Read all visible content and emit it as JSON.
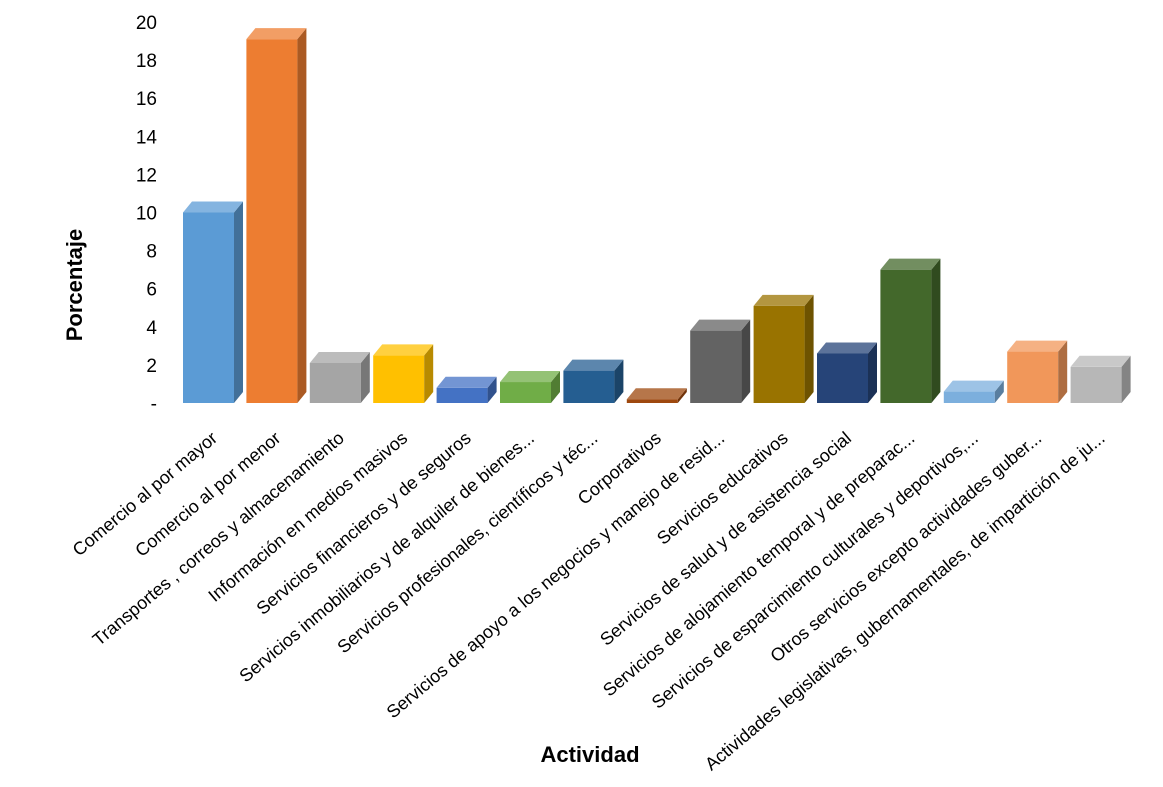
{
  "chart_data": {
    "type": "bar",
    "style": "3d-column",
    "xlabel": "Actividad",
    "ylabel": "Porcentaje",
    "ylim": [
      0,
      20
    ],
    "yticks": [
      "-",
      "2",
      "4",
      "6",
      "8",
      "10",
      "12",
      "14",
      "16",
      "18",
      "20"
    ],
    "grid": false,
    "legend": "none",
    "categories": [
      "Comercio al por mayor",
      "Comercio al por menor",
      "Transportes , correos y almacenamiento",
      "Información en medios masivos",
      "Servicios financieros y de seguros",
      "Servicios inmobiliarios y de alquiler de bienes...",
      "Servicios profesionales, científicos y téc...",
      "Corporativos",
      "Servicios de apoyo a los negocios y manejo de resid...",
      "Servicios educativos",
      "Servicios de salud y de asistencia social",
      "Servicios de alojamiento temporal y de preparac...",
      "Servicios de esparcimiento culturales y deportivos,...",
      "Otros servicios excepto actividades guber...",
      "Actividades legislativas, gubernamentales, de impartición de ju..."
    ],
    "values": [
      10.0,
      19.1,
      2.1,
      2.5,
      0.8,
      1.1,
      1.7,
      0.2,
      3.8,
      5.1,
      2.6,
      7.0,
      0.6,
      2.7,
      1.9
    ],
    "colors": [
      "#5B9BD5",
      "#ED7D31",
      "#A5A5A5",
      "#FFC000",
      "#4472C4",
      "#70AD47",
      "#255E91",
      "#9E480E",
      "#636363",
      "#997300",
      "#264478",
      "#43682B",
      "#7CAFDD",
      "#F1975A",
      "#B7B7B7"
    ]
  }
}
